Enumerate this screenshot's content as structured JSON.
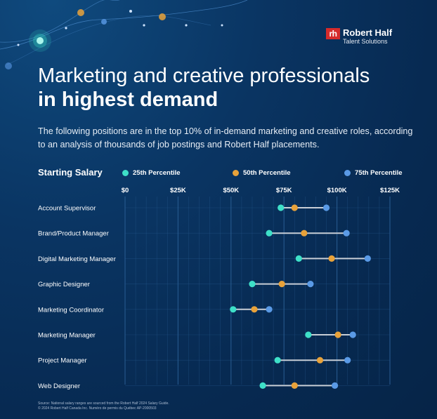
{
  "brand": {
    "name": "Robert Half",
    "sub": "Talent Solutions",
    "mark": "rh"
  },
  "title_line1": "Marketing and creative professionals",
  "title_line2": "in highest demand",
  "subtitle": "The following positions are in the top 10% of in-demand marketing and creative roles, according to an analysis of thousands of job postings and Robert Half placements.",
  "salary_label": "Starting Salary",
  "colors": {
    "p25": "#3ee0c8",
    "p50": "#e8a23a",
    "p75": "#5a9ae6",
    "connector": "#c8ced6",
    "grid": "#2a5e94"
  },
  "chart_data": {
    "type": "dumbbell",
    "x_ticks": [
      "$0",
      "$25K",
      "$50K",
      "$75K",
      "$100K",
      "$125K"
    ],
    "xlim": [
      0,
      125000
    ],
    "legend": [
      "25th Percentile",
      "50th Percentile",
      "75th Percentile"
    ],
    "categories": [
      "Account Supervisor",
      "Brand/Product Manager",
      "Digital Marketing Manager",
      "Graphic Designer",
      "Marketing Coordinator",
      "Marketing Manager",
      "Project Manager",
      "Web Designer"
    ],
    "series": [
      {
        "name": "25th Percentile",
        "values": [
          73500,
          68000,
          82000,
          60000,
          51000,
          86500,
          72000,
          65000
        ]
      },
      {
        "name": "50th Percentile",
        "values": [
          80000,
          84500,
          97500,
          74000,
          61000,
          100500,
          92000,
          80000
        ]
      },
      {
        "name": "75th Percentile",
        "values": [
          95000,
          104500,
          114500,
          87500,
          68000,
          107500,
          105000,
          99000
        ]
      }
    ]
  },
  "source_line1": "Source: National salary ranges are sourced from the Robert Half 2024 Salary Guide.",
  "source_line2": "© 2024 Robert Half Canada Inc. Numéro de permis du Québec AP-2000503"
}
